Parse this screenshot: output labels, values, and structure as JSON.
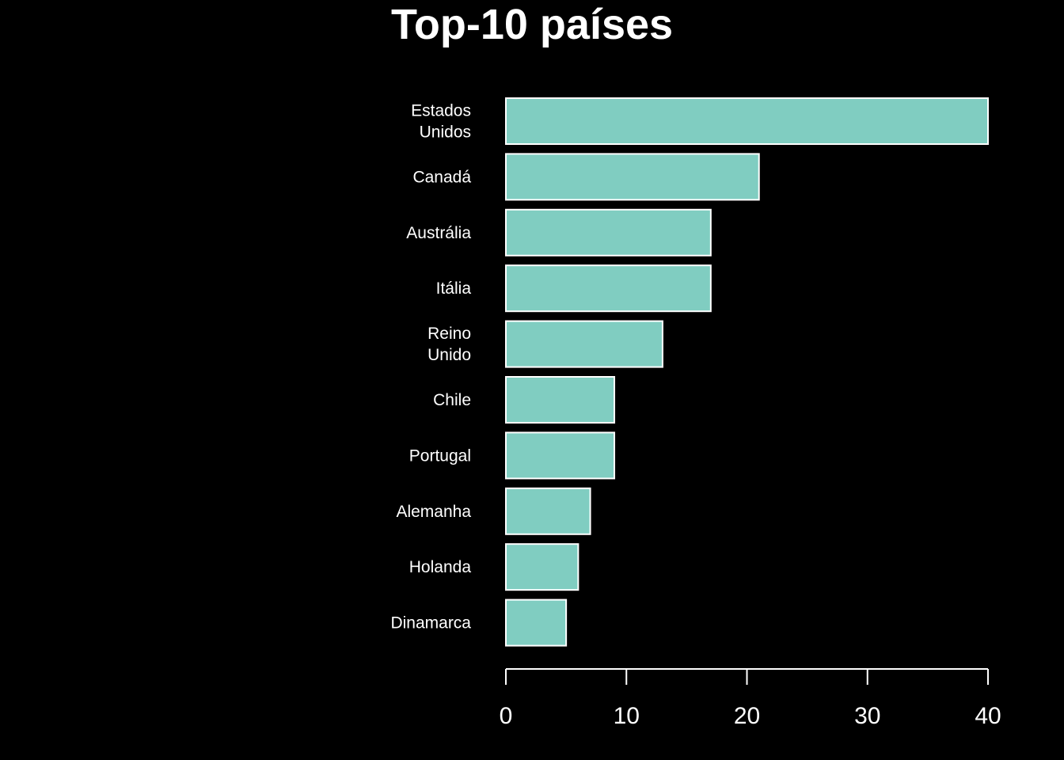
{
  "chart_data": {
    "type": "bar",
    "orientation": "horizontal",
    "title": "Top-10 países",
    "xlabel": "",
    "ylabel": "",
    "categories": [
      [
        "Estados",
        "Unidos"
      ],
      [
        "Canadá"
      ],
      [
        "Austrália"
      ],
      [
        "Itália"
      ],
      [
        "Reino",
        "Unido"
      ],
      [
        "Chile"
      ],
      [
        "Portugal"
      ],
      [
        "Alemanha"
      ],
      [
        "Holanda"
      ],
      [
        "Dinamarca"
      ]
    ],
    "values": [
      40,
      21,
      17,
      17,
      13,
      9,
      9,
      7,
      6,
      5
    ],
    "xlim": [
      0,
      40
    ],
    "xticks": [
      0,
      10,
      20,
      30,
      40
    ],
    "grid": false,
    "colors": {
      "background": "#000000",
      "bar_fill": "#80cdc1",
      "bar_stroke": "#ffffff",
      "text": "#ffffff"
    }
  }
}
